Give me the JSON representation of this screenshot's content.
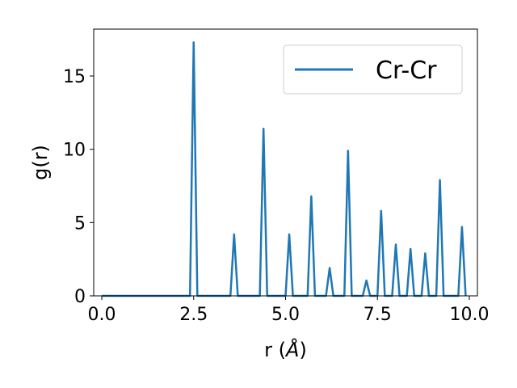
{
  "chart_data": {
    "type": "line",
    "xlabel_prefix": "r (",
    "xlabel_unit": "Å",
    "xlabel_suffix": ")",
    "ylabel": "g(r)",
    "xlim": [
      -0.22,
      10.22
    ],
    "ylim": [
      0,
      18.2
    ],
    "xticks": [
      0.0,
      2.5,
      5.0,
      7.5,
      10.0
    ],
    "xtick_labels": [
      "0.0",
      "2.5",
      "5.0",
      "7.5",
      "10.0"
    ],
    "yticks": [
      0,
      5,
      10,
      15
    ],
    "ytick_labels": [
      "0",
      "5",
      "10",
      "15"
    ],
    "grid": false,
    "legend_position": "top-right",
    "series": [
      {
        "name": "Cr-Cr",
        "color": "#1f77b4",
        "x": [
          0.0,
          2.4,
          2.5,
          2.6,
          3.5,
          3.6,
          3.7,
          4.3,
          4.4,
          4.5,
          5.0,
          5.1,
          5.2,
          5.6,
          5.7,
          5.8,
          6.1,
          6.2,
          6.3,
          6.6,
          6.7,
          6.8,
          7.1,
          7.2,
          7.3,
          7.5,
          7.6,
          7.7,
          7.9,
          8.0,
          8.1,
          8.3,
          8.4,
          8.5,
          8.7,
          8.8,
          8.9,
          9.1,
          9.2,
          9.3,
          9.7,
          9.8,
          9.9
        ],
        "y": [
          0,
          0,
          17.3,
          0,
          0,
          4.2,
          0,
          0,
          11.4,
          0,
          0,
          4.2,
          0,
          0,
          6.8,
          0,
          0,
          1.9,
          0,
          0,
          9.9,
          0,
          0,
          1.05,
          0,
          0,
          5.8,
          0,
          0,
          3.5,
          0,
          0,
          3.2,
          0,
          0,
          2.9,
          0,
          0,
          7.9,
          0,
          0,
          4.7,
          0
        ]
      }
    ]
  }
}
